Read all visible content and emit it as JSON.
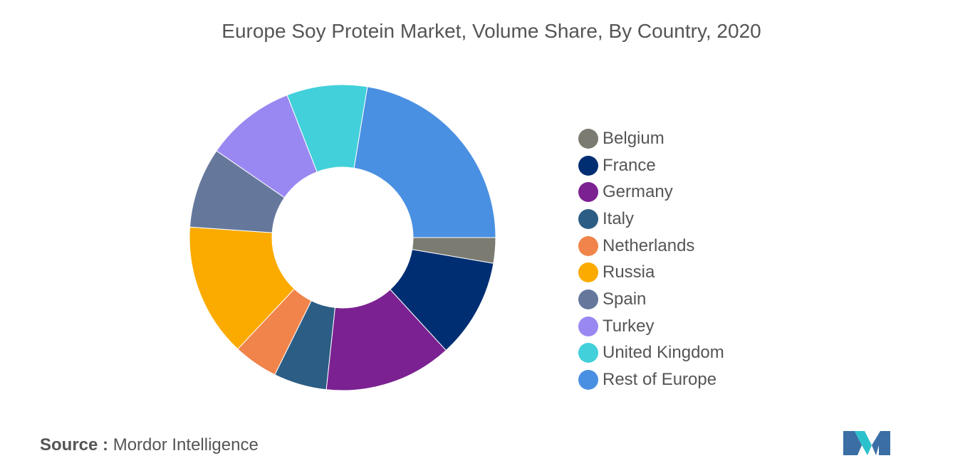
{
  "title": "Europe Soy Protein Market, Volume Share, By Country, 2020",
  "source": {
    "key": "Source :",
    "value": "Mordor Intelligence"
  },
  "logo": {
    "icon": "mordor-intelligence-logo",
    "colors": [
      "#3a6ea5",
      "#2bc1cc"
    ]
  },
  "chart_data": {
    "type": "pie",
    "variant": "donut",
    "title": "Europe Soy Protein Market, Volume Share, By Country, 2020",
    "legend_position": "right",
    "series": [
      {
        "name": "Belgium",
        "value": 2.7,
        "color": "#7b7b71"
      },
      {
        "name": "France",
        "value": 10.5,
        "color": "#002e73"
      },
      {
        "name": "Germany",
        "value": 13.5,
        "color": "#7b2191"
      },
      {
        "name": "Italy",
        "value": 5.6,
        "color": "#2c5d84"
      },
      {
        "name": "Netherlands",
        "value": 4.7,
        "color": "#f0844a"
      },
      {
        "name": "Russia",
        "value": 14.1,
        "color": "#fbab00"
      },
      {
        "name": "Spain",
        "value": 8.5,
        "color": "#65789c"
      },
      {
        "name": "Turkey",
        "value": 9.5,
        "color": "#9a88f2"
      },
      {
        "name": "United Kingdom",
        "value": 8.5,
        "color": "#42d0da"
      },
      {
        "name": "Rest of Europe",
        "value": 22.4,
        "color": "#4a90e2"
      }
    ]
  }
}
